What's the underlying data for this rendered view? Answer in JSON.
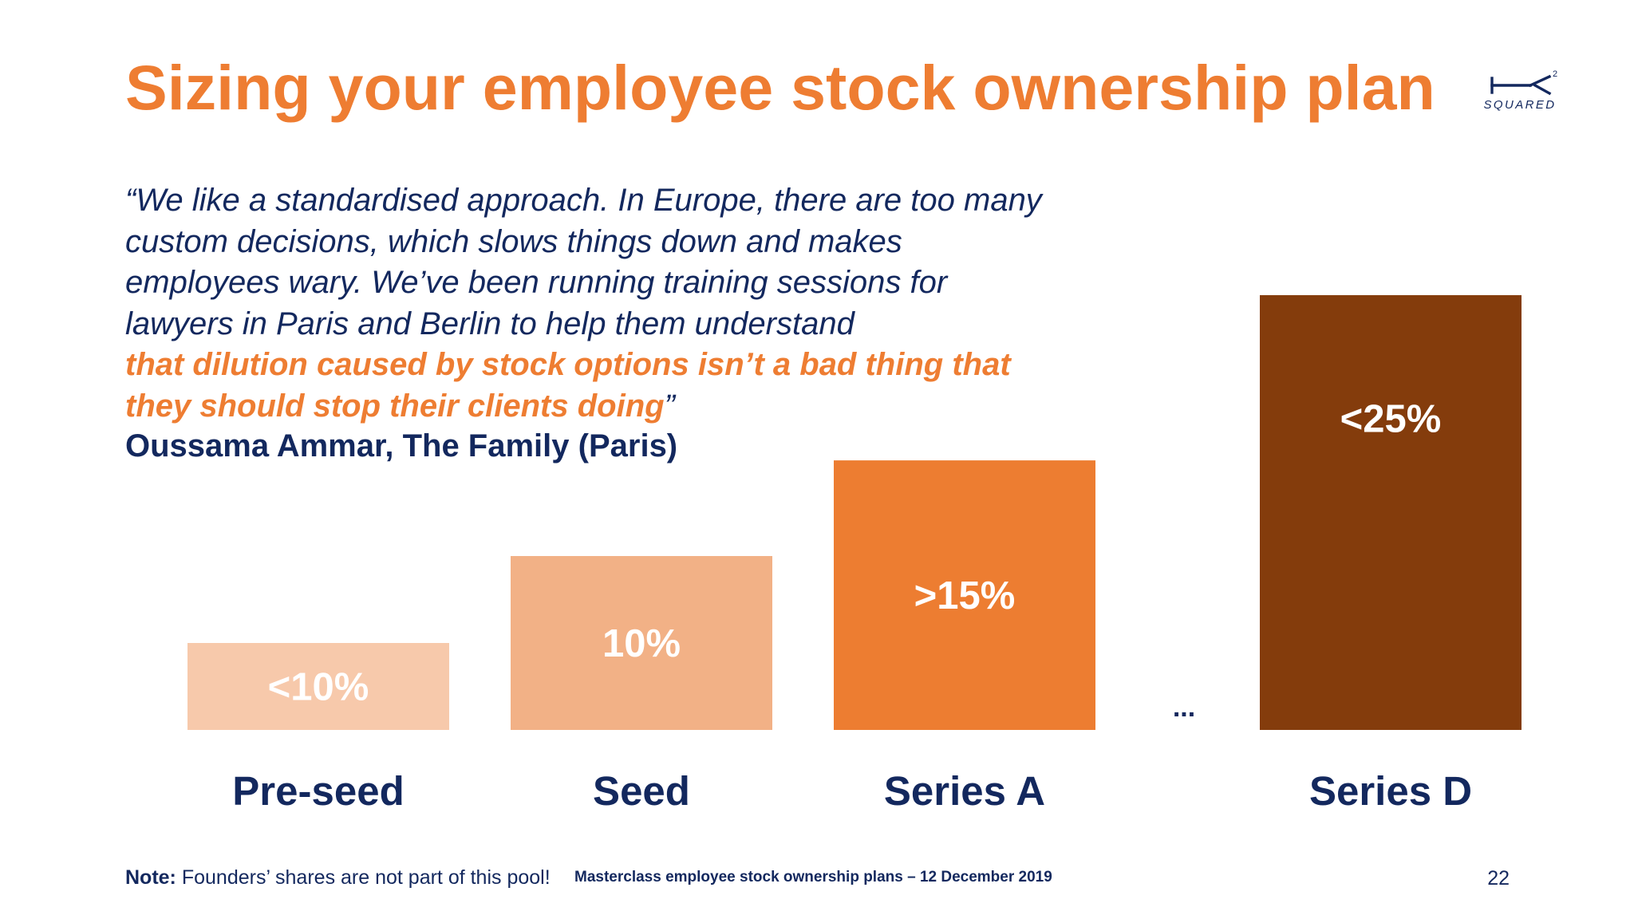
{
  "slide": {
    "title": "Sizing your employee stock ownership plan",
    "logo_text": "SQUARED",
    "logo_superscript": "2"
  },
  "quote": {
    "lines": [
      "“We like a standardised approach. In Europe, there are too many",
      "custom decisions, which slows things down and makes",
      "employees wary. We’ve been running training sessions for",
      "lawyers in Paris and Berlin to help them understand"
    ],
    "highlight_lines": [
      "that dilution caused by stock options isn’t a bad thing that",
      "they should stop their clients doing"
    ],
    "closing_mark": "”",
    "attribution": "Oussama Ammar, The Family (Paris)"
  },
  "chart_data": {
    "type": "bar",
    "title": "",
    "xlabel": "",
    "ylabel": "",
    "ylim": [
      0,
      30
    ],
    "grid": false,
    "categories": [
      "Pre-seed",
      "Seed",
      "Series A",
      "Series D"
    ],
    "values": [
      5,
      10,
      15.5,
      25
    ],
    "labels": [
      "<10%",
      "10%",
      ">15%",
      "<25%"
    ],
    "colors": [
      "#f7c9ab",
      "#f2b186",
      "#ed7d31",
      "#843c0c"
    ],
    "label_colors": [
      "#ffffff",
      "#ffffff",
      "#ffffff",
      "#ffffff"
    ],
    "gap_marker": "..."
  },
  "footer": {
    "note_label": "Note:",
    "note_text": "Founders’ shares are not part of this pool!",
    "event": "Masterclass employee stock ownership plans – 12 December 2019",
    "page_number": "22"
  }
}
